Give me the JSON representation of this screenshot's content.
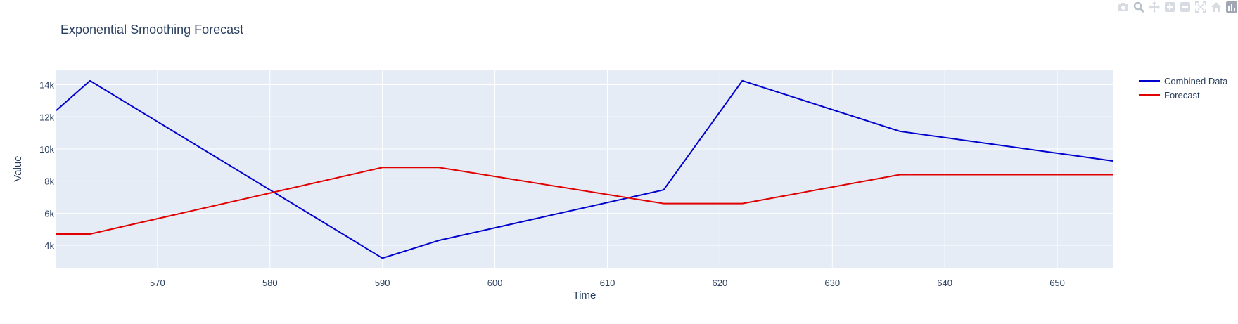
{
  "toolbar": {
    "icons": [
      "camera-icon",
      "zoom-icon",
      "pan-icon",
      "zoom-in-icon",
      "zoom-out-icon",
      "autoscale-icon",
      "home-icon",
      "plotly-logo-icon"
    ]
  },
  "colors": {
    "plot_bg": "#e5ecf6",
    "grid": "#ffffff",
    "text": "#2a3f5f",
    "combined": "#0000cd",
    "forecast": "#e00000"
  },
  "chart_data": {
    "type": "line",
    "title": "Exponential Smoothing Forecast",
    "xlabel": "Time",
    "ylabel": "Value",
    "xlim": [
      561,
      655
    ],
    "ylim": [
      2600,
      14900
    ],
    "x_ticks": [
      570,
      580,
      590,
      600,
      610,
      620,
      630,
      640,
      650
    ],
    "y_ticks": [
      4000,
      6000,
      8000,
      10000,
      12000,
      14000
    ],
    "y_tick_labels": [
      "4k",
      "6k",
      "8k",
      "10k",
      "12k",
      "14k"
    ],
    "grid": true,
    "legend": "top-right outside",
    "series": [
      {
        "name": "Combined Data",
        "color": "#0000cd",
        "x": [
          561,
          564,
          590,
          595,
          615,
          622,
          636,
          655
        ],
        "y": [
          12400,
          14250,
          3200,
          4300,
          7450,
          14250,
          11100,
          9250
        ]
      },
      {
        "name": "Forecast",
        "color": "#e00000",
        "x": [
          561,
          564,
          590,
          595,
          615,
          622,
          636,
          655
        ],
        "y": [
          4700,
          4700,
          8850,
          8850,
          6600,
          6600,
          8400,
          8400
        ]
      }
    ]
  }
}
